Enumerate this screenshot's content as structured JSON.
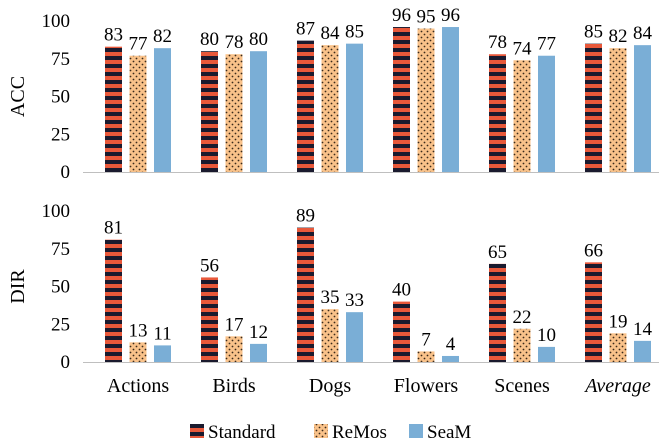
{
  "chart_data": [
    {
      "type": "bar",
      "ylabel": "ACC",
      "ylim": [
        0,
        100
      ],
      "yticks": [
        0,
        25,
        50,
        75,
        100
      ],
      "categories": [
        "Actions",
        "Birds",
        "Dogs",
        "Flowers",
        "Scenes",
        "Average"
      ],
      "series": [
        {
          "name": "Standard",
          "values": [
            83,
            80,
            87,
            96,
            78,
            85
          ]
        },
        {
          "name": "ReMos",
          "values": [
            77,
            78,
            84,
            95,
            74,
            82
          ]
        },
        {
          "name": "SeaM",
          "values": [
            82,
            80,
            85,
            96,
            77,
            84
          ]
        }
      ]
    },
    {
      "type": "bar",
      "ylabel": "DIR",
      "ylim": [
        0,
        100
      ],
      "yticks": [
        0,
        25,
        50,
        75,
        100
      ],
      "categories": [
        "Actions",
        "Birds",
        "Dogs",
        "Flowers",
        "Scenes",
        "Average"
      ],
      "series": [
        {
          "name": "Standard",
          "values": [
            81,
            56,
            89,
            40,
            65,
            66
          ]
        },
        {
          "name": "ReMos",
          "values": [
            13,
            17,
            35,
            7,
            22,
            19
          ]
        },
        {
          "name": "SeaM",
          "values": [
            11,
            12,
            33,
            4,
            10,
            14
          ]
        }
      ]
    }
  ],
  "legend": {
    "position": "bottom",
    "items": [
      {
        "name": "Standard"
      },
      {
        "name": "ReMos"
      },
      {
        "name": "SeaM"
      }
    ]
  },
  "colors": {
    "standard": "#e8583a",
    "standard_stripe": "#1a1a2e",
    "remos": "#f9c28a",
    "remos_dot": "#3a2a1a",
    "seam": "#7aaed6"
  },
  "italic_category": "Average"
}
